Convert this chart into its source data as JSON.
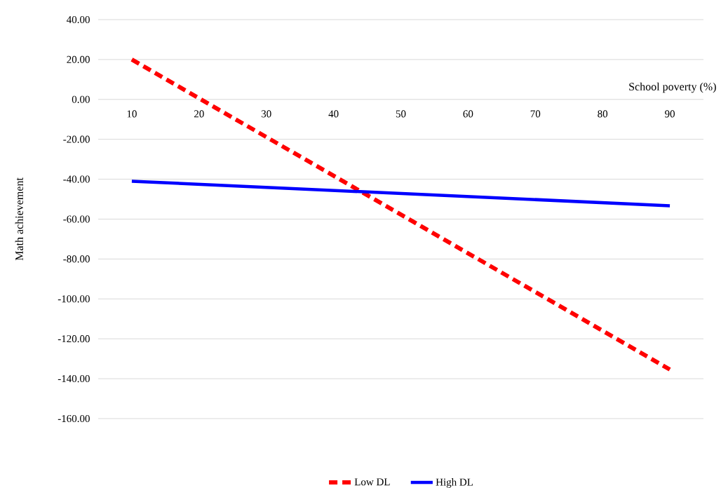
{
  "chart_data": {
    "type": "line",
    "xlabel": "School poverty (%)",
    "ylabel": "Math achievement",
    "x": [
      10,
      90
    ],
    "series": [
      {
        "name": "Low DL",
        "color": "#ff0000",
        "line_style": "dashed",
        "values": [
          20,
          -135.4
        ]
      },
      {
        "name": "High DL",
        "color": "#0000ff",
        "line_style": "solid",
        "values": [
          -41,
          -53.3
        ]
      }
    ],
    "xlim": [
      5,
      95
    ],
    "ylim": [
      -160,
      40
    ],
    "xticks": [
      10,
      20,
      30,
      40,
      50,
      60,
      70,
      80,
      90
    ],
    "yticks": [
      {
        "value": 40,
        "label": "40.00"
      },
      {
        "value": 20,
        "label": "20.00"
      },
      {
        "value": 0,
        "label": "0.00"
      },
      {
        "value": -20,
        "label": "-20.00"
      },
      {
        "value": -40,
        "label": "-40.00"
      },
      {
        "value": -60,
        "label": "-60.00"
      },
      {
        "value": -80,
        "label": "-80.00"
      },
      {
        "value": -100,
        "label": "-100.00"
      },
      {
        "value": -120,
        "label": "-120.00"
      },
      {
        "value": -140,
        "label": "-140.00"
      },
      {
        "value": -160,
        "label": "-160.00"
      }
    ],
    "grid": "y",
    "legend": "bottom"
  }
}
